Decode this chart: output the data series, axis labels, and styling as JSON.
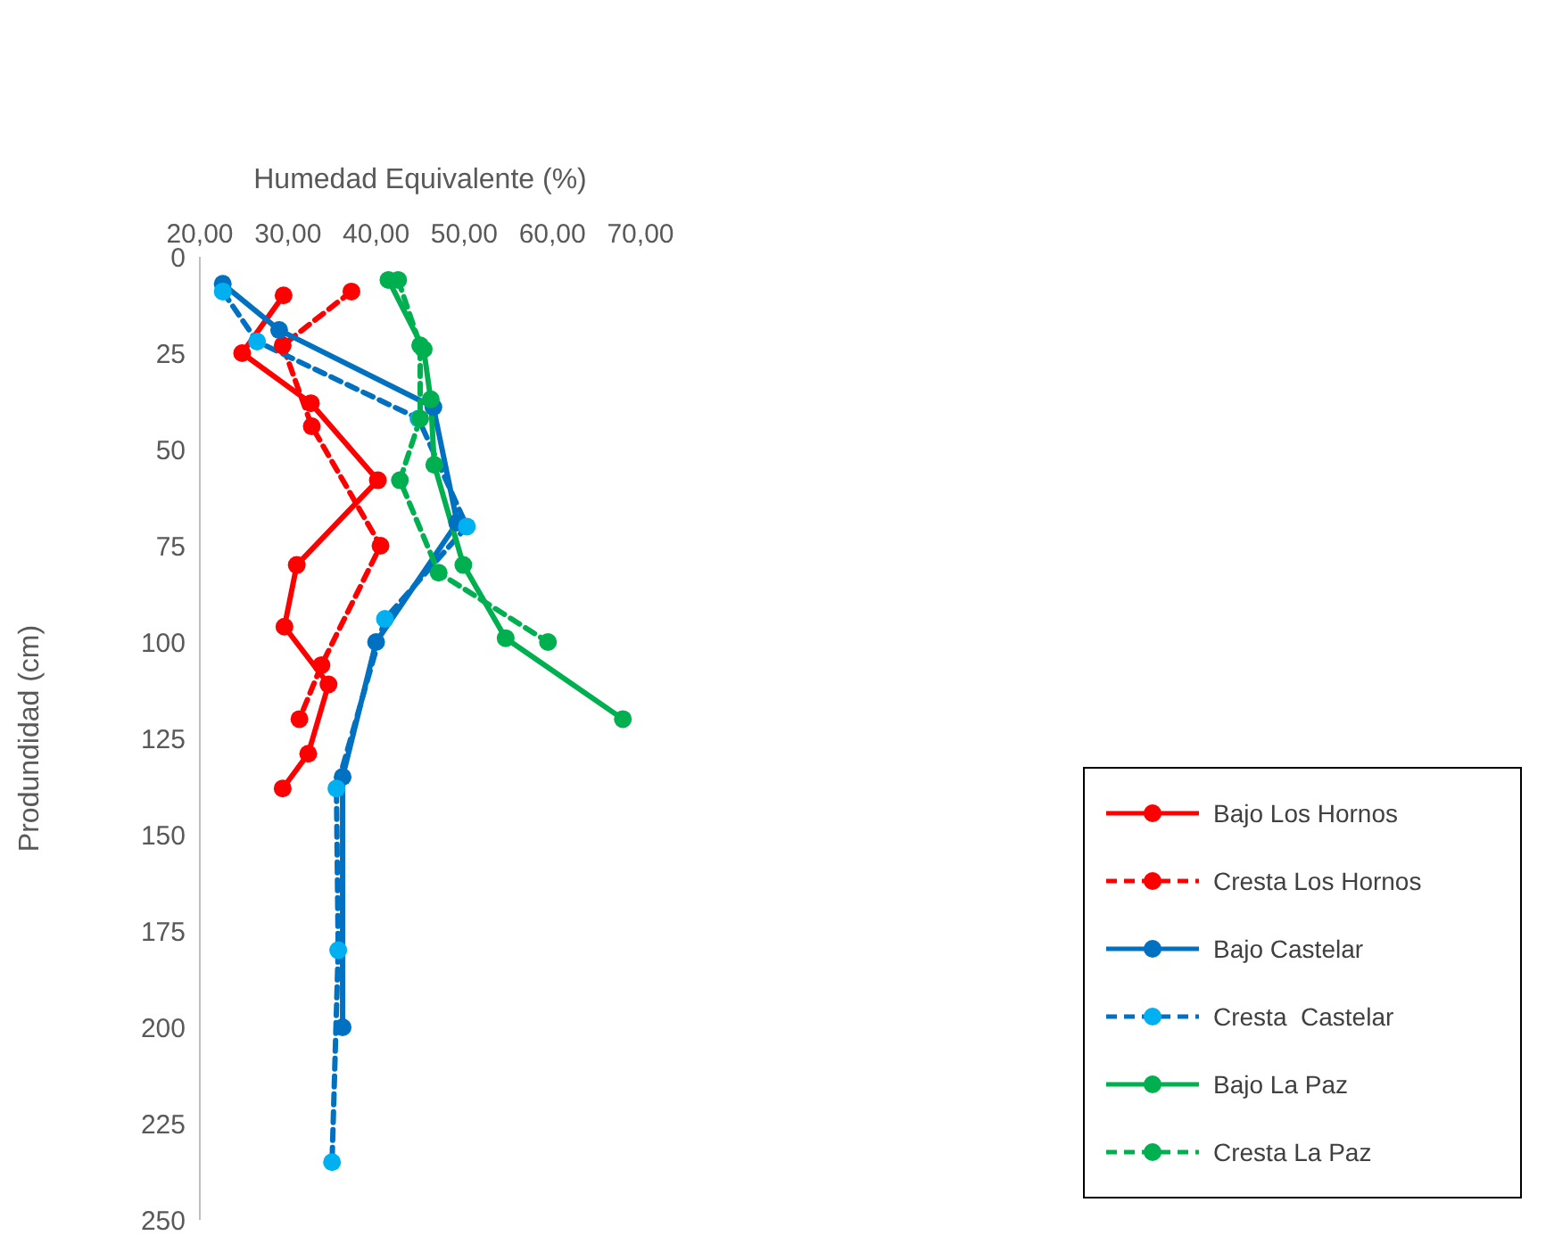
{
  "chart_data": {
    "type": "line",
    "xlabel": "Humedad Equivalente (%)",
    "ylabel": "Produndidad (cm)",
    "xlim": [
      20,
      70
    ],
    "xticks": [
      {
        "value": 20,
        "label": "20,00"
      },
      {
        "value": 30,
        "label": "30,00"
      },
      {
        "value": 40,
        "label": "40,00"
      },
      {
        "value": 50,
        "label": "50,00"
      },
      {
        "value": 60,
        "label": "60,00"
      },
      {
        "value": 70,
        "label": "70,00"
      }
    ],
    "ylim": [
      250,
      0
    ],
    "yticks": [
      0,
      25,
      50,
      75,
      100,
      125,
      150,
      175,
      200,
      225,
      250
    ],
    "grid": false,
    "legend": "right",
    "marker": "circle",
    "series": [
      {
        "name": "Bajo Los Hornos",
        "color": "#ff0000",
        "line_style": "solid",
        "x": [
          29.5,
          24.8,
          32.6,
          40.2,
          31.0,
          29.6,
          34.6,
          32.3,
          29.4
        ],
        "values": [
          10,
          25,
          38,
          58,
          80,
          96,
          111,
          129,
          138
        ]
      },
      {
        "name": "Cresta Los Hornos",
        "color": "#ff0000",
        "line_style": "dashed",
        "x": [
          37.2,
          29.4,
          32.7,
          40.5,
          33.8,
          31.3
        ],
        "values": [
          9,
          23,
          44,
          75,
          106,
          120
        ]
      },
      {
        "name": "Bajo Castelar",
        "color": "#0070c0",
        "line_style": "solid",
        "x": [
          22.6,
          29.0,
          46.5,
          49.2,
          40.0,
          36.2,
          36.2
        ],
        "values": [
          7,
          19,
          39,
          69,
          100,
          135,
          200
        ]
      },
      {
        "name": "Cresta  Castelar",
        "color": "#00b0f0",
        "line_style": "dashed",
        "x": [
          22.6,
          26.5,
          44.8,
          50.3,
          41.0,
          35.5,
          35.7,
          35.0
        ],
        "values": [
          9,
          22,
          42,
          70,
          94,
          138,
          180,
          235
        ]
      },
      {
        "name": "Bajo La Paz",
        "color": "#00b050",
        "line_style": "solid",
        "x": [
          41.4,
          45.4,
          46.2,
          46.6,
          49.9,
          54.7,
          68.0
        ],
        "values": [
          6,
          24,
          37,
          54,
          80,
          99,
          120
        ]
      },
      {
        "name": "Cresta La Paz",
        "color": "#00b050",
        "line_style": "dashed",
        "x": [
          42.5,
          45.0,
          45.0,
          42.7,
          47.1,
          59.5
        ],
        "values": [
          6,
          23,
          42,
          58,
          82,
          100
        ]
      }
    ]
  }
}
